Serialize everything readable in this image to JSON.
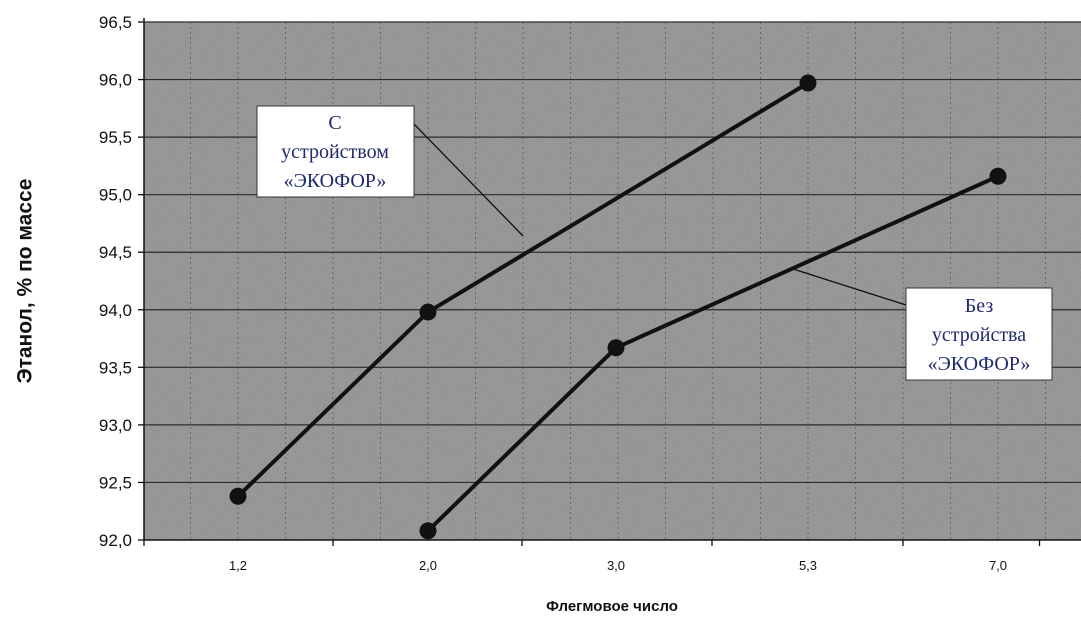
{
  "chart_data": {
    "type": "line",
    "xlabel": "Флегмовое число",
    "ylabel": "Этанол, % по массе",
    "categories": [
      "1,2",
      "2,0",
      "3,0",
      "5,3",
      "7,0"
    ],
    "ylim": [
      92.0,
      96.5
    ],
    "yticks": [
      "92,0",
      "92,5",
      "93,0",
      "93,5",
      "94,0",
      "94,5",
      "95,0",
      "95,5",
      "96,0",
      "96,5"
    ],
    "grid": true,
    "series": [
      {
        "name": "С устройством «ЭКОФОР»",
        "x": [
          "1,2",
          "2,0",
          "5,3"
        ],
        "values": [
          92.38,
          93.98,
          95.97
        ]
      },
      {
        "name": "Без устройства «ЭКОФОР»",
        "x": [
          "2,0",
          "3,0",
          "7,0"
        ],
        "values": [
          92.08,
          93.67,
          95.16
        ]
      }
    ],
    "annotations": [
      {
        "lines": [
          "С",
          "устройством",
          "«ЭКОФОР»"
        ],
        "series": 0
      },
      {
        "lines": [
          "Без",
          "устройства",
          "«ЭКОФОР»"
        ],
        "series": 1
      }
    ],
    "colors": {
      "line": "#111111",
      "plot_bg": "#8f8f8f",
      "grid": "#2b2b2b",
      "callout_text": "#1f2a6b"
    }
  }
}
